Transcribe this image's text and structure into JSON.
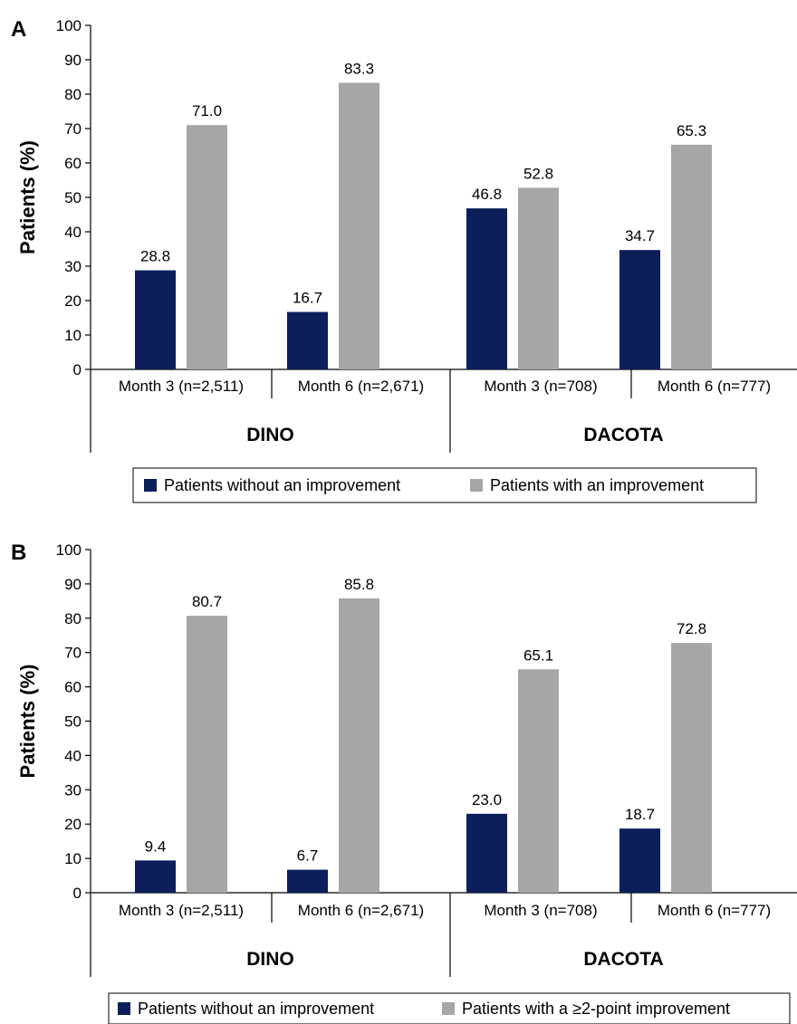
{
  "colors": {
    "without": "#0c1f5b",
    "with": "#a6a6a6"
  },
  "chart_data": [
    {
      "type": "bar",
      "panel_label": "A",
      "ylabel": "Patients (%)",
      "ylim": [
        0,
        100
      ],
      "yticks": [
        0,
        10,
        20,
        30,
        40,
        50,
        60,
        70,
        80,
        90,
        100
      ],
      "categories": [
        "Month 3 (n=2,511)",
        "Month 6 (n=2,671)",
        "Month 3 (n=708)",
        "Month 6 (n=777)"
      ],
      "groups": [
        {
          "label": "DINO",
          "categories": [
            "Month 3 (n=2,511)",
            "Month 6 (n=2,671)"
          ]
        },
        {
          "label": "DACOTA",
          "categories": [
            "Month 3 (n=708)",
            "Month 6 (n=777)"
          ]
        }
      ],
      "series": [
        {
          "name": "Patients without an improvement",
          "color": "#0c1f5b",
          "values": [
            28.8,
            16.7,
            46.8,
            34.7
          ]
        },
        {
          "name": "Patients with an improvement",
          "color": "#a6a6a6",
          "values": [
            71.0,
            83.3,
            52.8,
            65.3
          ]
        }
      ],
      "data_labels": [
        [
          "28.8",
          "16.7",
          "46.8",
          "34.7"
        ],
        [
          "71.0",
          "83.3",
          "52.8",
          "65.3"
        ]
      ],
      "legend_position": "bottom"
    },
    {
      "type": "bar",
      "panel_label": "B",
      "ylabel": "Patients (%)",
      "ylim": [
        0,
        100
      ],
      "yticks": [
        0,
        10,
        20,
        30,
        40,
        50,
        60,
        70,
        80,
        90,
        100
      ],
      "categories": [
        "Month 3 (n=2,511)",
        "Month 6 (n=2,671)",
        "Month 3 (n=708)",
        "Month 6 (n=777)"
      ],
      "groups": [
        {
          "label": "DINO",
          "categories": [
            "Month 3 (n=2,511)",
            "Month 6 (n=2,671)"
          ]
        },
        {
          "label": "DACOTA",
          "categories": [
            "Month 3 (n=708)",
            "Month 6 (n=777)"
          ]
        }
      ],
      "series": [
        {
          "name": "Patients without an improvement",
          "color": "#0c1f5b",
          "values": [
            9.4,
            6.7,
            23.0,
            18.7
          ]
        },
        {
          "name": "Patients with a ≥2-point improvement",
          "color": "#a6a6a6",
          "values": [
            80.7,
            85.8,
            65.1,
            72.8
          ]
        }
      ],
      "data_labels": [
        [
          "9.4",
          "6.7",
          "23.0",
          "18.7"
        ],
        [
          "80.7",
          "85.8",
          "65.1",
          "72.8"
        ]
      ],
      "legend_position": "bottom"
    }
  ]
}
